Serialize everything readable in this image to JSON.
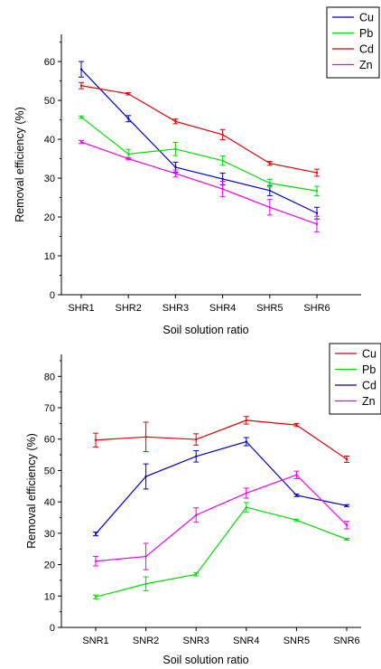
{
  "chart_data": [
    {
      "type": "line",
      "categories": [
        "SHR1",
        "SHR2",
        "SHR3",
        "SHR4",
        "SHR5",
        "SHR6"
      ],
      "xlabel": "Soil solution ratio",
      "ylabel": "Removal efficiency (%)",
      "ylim": [
        0,
        67
      ],
      "yticks": [
        0,
        10,
        20,
        30,
        40,
        50,
        60
      ],
      "legend_position": "top-right",
      "series": [
        {
          "name": "Cu",
          "color": "#0000cc",
          "values": [
            58.0,
            45.3,
            32.8,
            29.8,
            26.8,
            21.0
          ],
          "errors": [
            2.0,
            0.8,
            1.3,
            1.5,
            1.3,
            1.5
          ]
        },
        {
          "name": "Pb",
          "color": "#00dd00",
          "values": [
            45.7,
            36.2,
            37.5,
            34.5,
            28.7,
            26.7
          ],
          "errors": [
            0.3,
            1.2,
            1.7,
            1.2,
            1.0,
            1.2
          ]
        },
        {
          "name": "Cd",
          "color": "#dd0000",
          "values": [
            53.8,
            51.7,
            44.6,
            41.2,
            33.8,
            31.4
          ],
          "errors": [
            0.8,
            0.3,
            0.6,
            1.3,
            0.5,
            0.9
          ]
        },
        {
          "name": "Zn",
          "color": "#ee00ee",
          "values": [
            39.3,
            35.0,
            31.2,
            27.2,
            22.5,
            18.2
          ],
          "errors": [
            0.4,
            0.3,
            0.9,
            2.0,
            2.0,
            2.0
          ]
        }
      ]
    },
    {
      "type": "line",
      "categories": [
        "SNR1",
        "SNR2",
        "SNR3",
        "SNR4",
        "SNR5",
        "SNR6"
      ],
      "xlabel": "Soil solution ratio",
      "ylabel": "Removal efficiency (%)",
      "ylim": [
        0,
        87
      ],
      "yticks": [
        0,
        10,
        20,
        30,
        40,
        50,
        60,
        70,
        80
      ],
      "legend_position": "top-right",
      "series": [
        {
          "name": "Cu",
          "color": "#dd0000",
          "values": [
            59.7,
            60.7,
            59.9,
            66.0,
            64.5,
            53.6
          ],
          "errors": [
            2.2,
            4.7,
            1.8,
            1.2,
            0.5,
            1.0
          ]
        },
        {
          "name": "Pb",
          "color": "#00dd00",
          "values": [
            9.7,
            13.9,
            16.9,
            38.3,
            34.2,
            28.1
          ],
          "errors": [
            0.6,
            2.2,
            0.5,
            1.5,
            0.3,
            0.3
          ]
        },
        {
          "name": "Cd",
          "color": "#0000cc",
          "values": [
            29.8,
            48.1,
            54.5,
            59.2,
            42.1,
            38.8
          ],
          "errors": [
            0.6,
            4.0,
            1.8,
            1.3,
            0.4,
            0.3
          ]
        },
        {
          "name": "Zn",
          "color": "#ee00ee",
          "values": [
            21.1,
            22.6,
            35.8,
            42.8,
            48.6,
            32.6
          ],
          "errors": [
            1.5,
            4.2,
            2.3,
            1.6,
            1.2,
            1.2
          ]
        }
      ]
    }
  ]
}
